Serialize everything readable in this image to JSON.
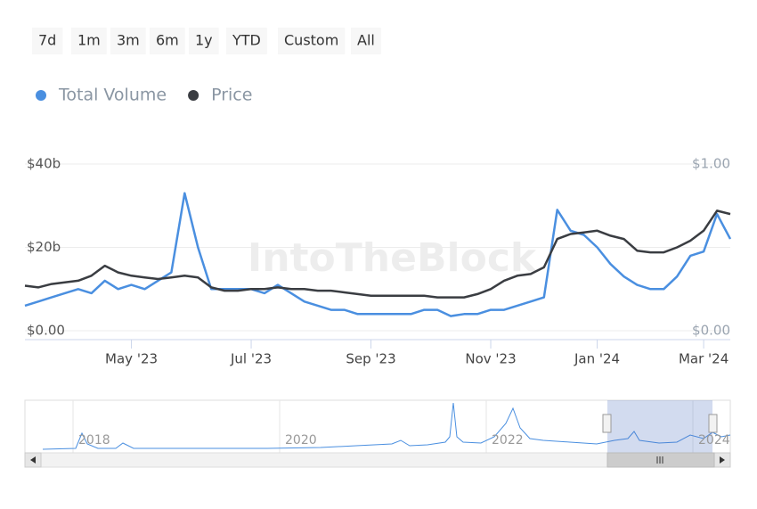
{
  "range_buttons": [
    "7d",
    "1m",
    "3m",
    "6m",
    "1y",
    "YTD",
    "Custom",
    "All"
  ],
  "watermark": "IntoTheBlock",
  "chart_data": {
    "type": "line",
    "categories": [
      null,
      null,
      null,
      null,
      null,
      null,
      null,
      null,
      "May '23",
      null,
      null,
      null,
      null,
      null,
      null,
      null,
      null,
      "Jul '23",
      null,
      null,
      null,
      null,
      null,
      null,
      null,
      null,
      "Sep '23",
      null,
      null,
      null,
      null,
      null,
      null,
      null,
      null,
      "Nov '23",
      null,
      null,
      null,
      null,
      null,
      null,
      null,
      "Jan '24",
      null,
      null,
      null,
      null,
      null,
      null,
      null,
      "Mar '24",
      null,
      null
    ],
    "series": [
      {
        "name": "Total Volume",
        "color": "#4a8fe0",
        "values": [
          6,
          7,
          8,
          9,
          10,
          9,
          12,
          10,
          11,
          10,
          12,
          14,
          33,
          20,
          10,
          10,
          10,
          10,
          9,
          11,
          9,
          7,
          6,
          5,
          5,
          4,
          4,
          4,
          4,
          4,
          5,
          5,
          3.5,
          4,
          4,
          5,
          5,
          6,
          7,
          8,
          29,
          24,
          23,
          20,
          16,
          13,
          11,
          10,
          10,
          13,
          18,
          19,
          28,
          22
        ]
      },
      {
        "name": "Price",
        "color": "#3a3d42",
        "axis": "y2",
        "values": [
          0.27,
          0.26,
          0.28,
          0.29,
          0.3,
          0.33,
          0.39,
          0.35,
          0.33,
          0.32,
          0.31,
          0.32,
          0.33,
          0.32,
          0.26,
          0.24,
          0.24,
          0.25,
          0.25,
          0.26,
          0.25,
          0.25,
          0.24,
          0.24,
          0.23,
          0.22,
          0.21,
          0.21,
          0.21,
          0.21,
          0.21,
          0.2,
          0.2,
          0.2,
          0.22,
          0.25,
          0.3,
          0.33,
          0.34,
          0.38,
          0.55,
          0.58,
          0.59,
          0.6,
          0.57,
          0.55,
          0.48,
          0.47,
          0.47,
          0.5,
          0.54,
          0.6,
          0.72,
          0.7
        ]
      }
    ],
    "ylim": [
      0,
      40
    ],
    "yticks": [
      {
        "value": 0,
        "label": "$0.00"
      },
      {
        "value": 20,
        "label": "$20b"
      },
      {
        "value": 40,
        "label": "$40b"
      }
    ],
    "y2lim": [
      0,
      1
    ],
    "y2ticks": [
      {
        "value": 0,
        "label": "$0.00"
      },
      {
        "value": 1,
        "label": "$1.00"
      }
    ],
    "grid": true
  },
  "navigator": {
    "labels": [
      "2018",
      "2020",
      "2022",
      "2024"
    ]
  }
}
